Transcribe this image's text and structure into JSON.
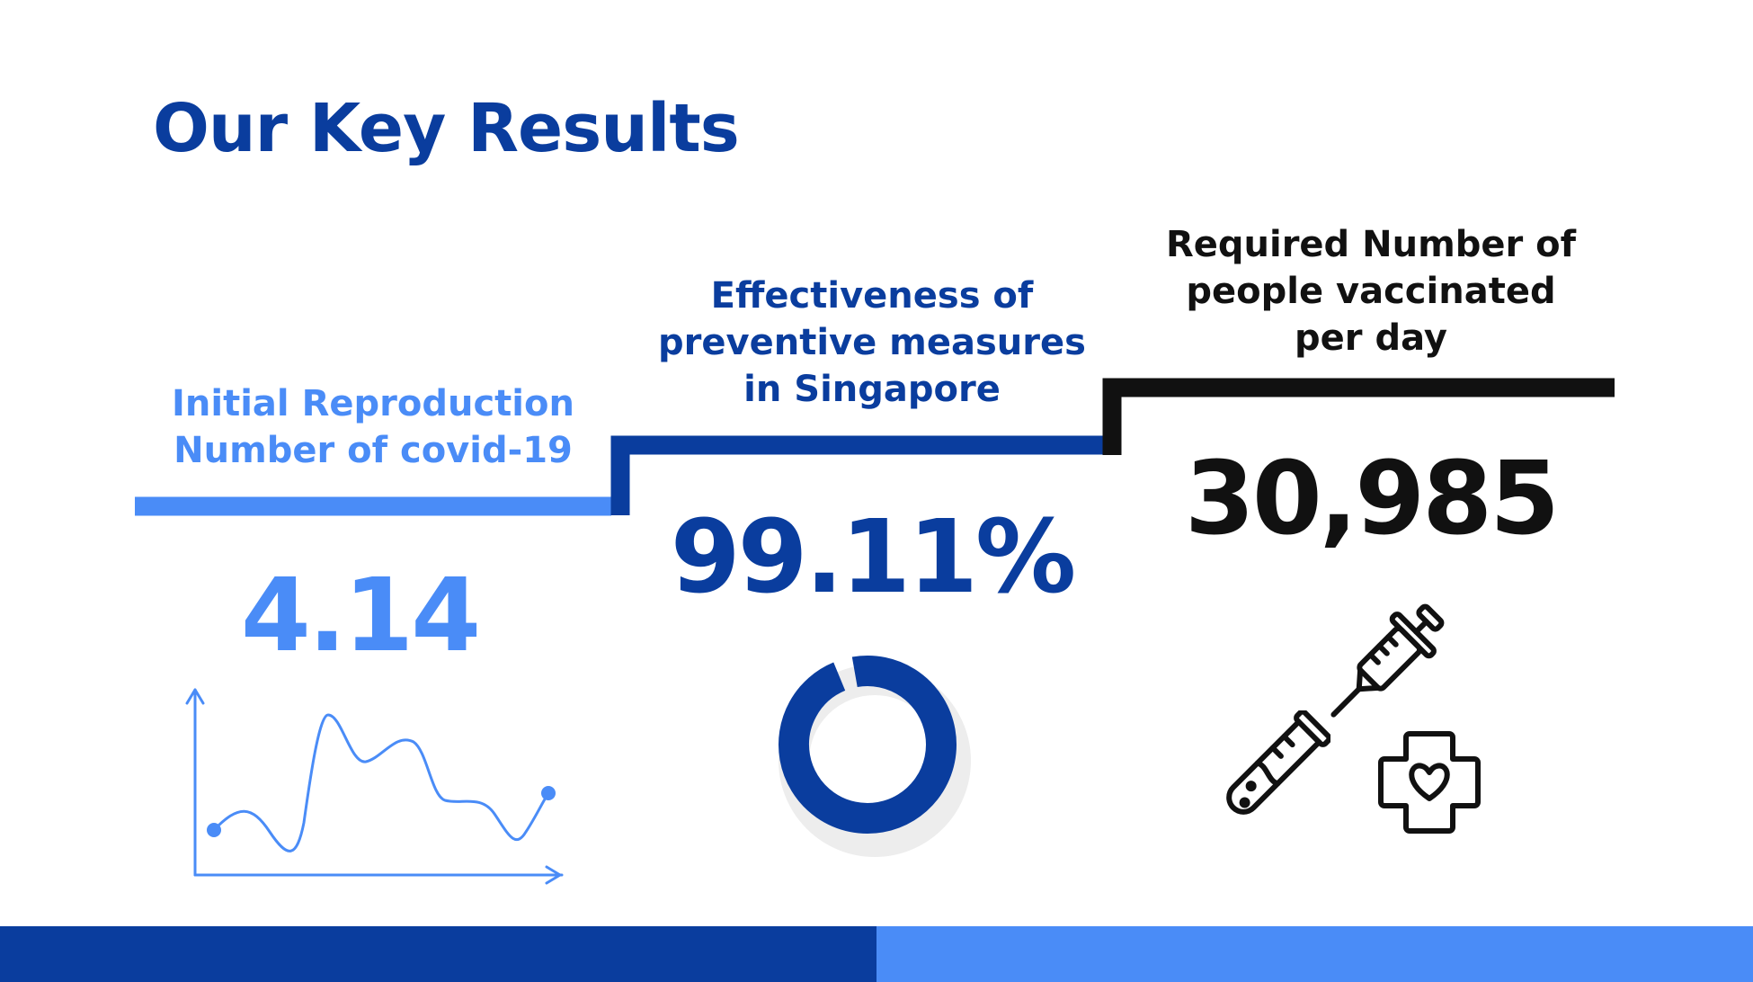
{
  "title": "Our Key Results",
  "colors": {
    "light_blue": "#4a8cf7",
    "dark_blue": "#0a3d9e",
    "black": "#111111",
    "donut_track": "#ededed"
  },
  "steps": [
    {
      "label_lines": [
        "Initial Reproduction",
        "Number of covid-19"
      ],
      "value": "4.14",
      "icon": "line-chart-icon"
    },
    {
      "label_lines": [
        "Effectiveness of",
        "preventive measures",
        "in Singapore"
      ],
      "value": "99.11%",
      "donut_fraction": 0.9911,
      "icon": "donut-chart-icon"
    },
    {
      "label_lines": [
        "Required Number of",
        "people vaccinated",
        "per day"
      ],
      "value": "30,985",
      "icons": [
        "syringe-icon",
        "test-tube-icon",
        "medical-cross-heart-icon"
      ]
    }
  ]
}
